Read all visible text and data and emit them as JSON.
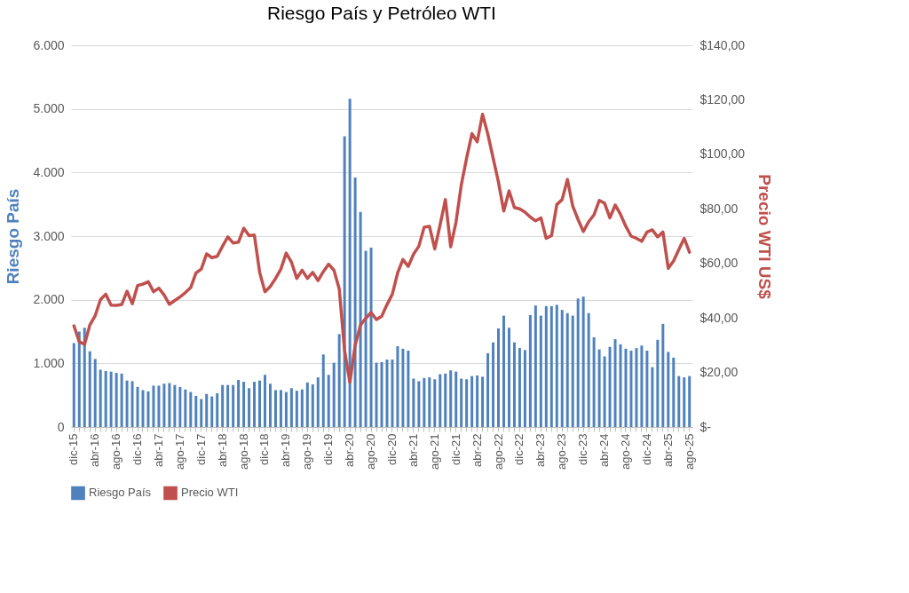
{
  "chart_data": {
    "type": "bar",
    "title": "Riesgo País y Petróleo WTI",
    "ylabel": "Riesgo País",
    "y2label": "Precio WTI US$",
    "categories": [
      "dic-15",
      null,
      null,
      null,
      "abr-16",
      null,
      null,
      null,
      "ago-16",
      null,
      null,
      null,
      "dic-16",
      null,
      null,
      null,
      "abr-17",
      null,
      null,
      null,
      "ago-17",
      null,
      null,
      null,
      "dic-17",
      null,
      null,
      null,
      "abr-18",
      null,
      null,
      null,
      "ago-18",
      null,
      null,
      null,
      "dic-18",
      null,
      null,
      null,
      "abr-19",
      null,
      null,
      null,
      "ago-19",
      null,
      null,
      null,
      "dic-19",
      null,
      null,
      null,
      "abr-20",
      null,
      null,
      null,
      "ago-20",
      null,
      null,
      null,
      "dic-20",
      null,
      null,
      null,
      "abr-21",
      null,
      null,
      null,
      "ago-21",
      null,
      null,
      null,
      "dic-21",
      null,
      null,
      null,
      "abr-22",
      null,
      null,
      null,
      "ago-22",
      null,
      null,
      null,
      "dic-22",
      null,
      null,
      null,
      "abr-23",
      null,
      null,
      null,
      "ago-23",
      null,
      null,
      null,
      "dic-23",
      null,
      null,
      null,
      "abr-24",
      null,
      null,
      null,
      "ago-24",
      null,
      null,
      null,
      "dic-24",
      null,
      null,
      null,
      "abr-25",
      null,
      null,
      null,
      "ago-25"
    ],
    "series": [
      {
        "name": "Riesgo País",
        "color": "#4f81bd",
        "values": [
          1320,
          1500,
          1560,
          1190,
          1070,
          900,
          880,
          870,
          850,
          840,
          730,
          720,
          630,
          580,
          560,
          650,
          650,
          680,
          690,
          660,
          630,
          590,
          550,
          490,
          440,
          520,
          480,
          530,
          660,
          660,
          660,
          740,
          710,
          610,
          710,
          730,
          820,
          680,
          580,
          580,
          550,
          610,
          570,
          590,
          700,
          670,
          780,
          1140,
          820,
          1010,
          1460,
          4570,
          5160,
          3920,
          3380,
          2770,
          2820,
          1010,
          1020,
          1060,
          1060,
          1270,
          1230,
          1200,
          760,
          720,
          770,
          780,
          750,
          830,
          840,
          890,
          870,
          760,
          750,
          800,
          810,
          790,
          1160,
          1330,
          1550,
          1750,
          1560,
          1330,
          1240,
          1210,
          1760,
          1910,
          1750,
          1900,
          1900,
          1920,
          1840,
          1790,
          1750,
          2020,
          2050,
          1790,
          1410,
          1220,
          1110,
          1260,
          1380,
          1300,
          1230,
          1200,
          1240,
          1280,
          1200,
          940,
          1370,
          1620,
          1180,
          1090,
          800,
          780,
          800
        ]
      },
      {
        "name": "Precio WTI",
        "type": "line",
        "axis": "y2",
        "color": "#c0504d",
        "values": [
          37.1,
          31.3,
          30.3,
          37.4,
          40.8,
          46.7,
          48.7,
          44.7,
          44.6,
          44.9,
          49.8,
          45.2,
          51.9,
          52.4,
          53.3,
          49.6,
          50.9,
          48.4,
          45.0,
          46.4,
          47.7,
          49.3,
          51.1,
          56.5,
          57.9,
          63.5,
          62.1,
          62.6,
          66.3,
          69.7,
          67.5,
          67.8,
          72.9,
          70.2,
          70.4,
          56.7,
          49.6,
          51.5,
          54.5,
          57.9,
          63.8,
          60.4,
          54.5,
          57.5,
          54.5,
          56.7,
          53.7,
          57.0,
          59.7,
          57.5,
          50.6,
          28.1,
          16.4,
          30.0,
          37.4,
          39.9,
          42.0,
          39.4,
          40.6,
          44.9,
          48.7,
          56.5,
          61.4,
          58.9,
          63.4,
          66.3,
          73.3,
          73.6,
          65.3,
          74.1,
          83.4,
          66.1,
          75.1,
          88.8,
          98.6,
          107.6,
          104.6,
          114.7,
          107.4,
          98.6,
          89.8,
          79.2,
          86.6,
          80.5,
          80.0,
          78.8,
          77.0,
          75.6,
          76.7,
          69.2,
          70.2,
          81.6,
          83.4,
          90.8,
          81.0,
          76.1,
          71.7,
          75.3,
          77.8,
          83.1,
          82.1,
          76.7,
          81.4,
          78.0,
          73.6,
          70.0,
          69.2,
          68.1,
          71.5,
          72.3,
          69.7,
          71.5,
          58.2,
          60.9,
          65.1,
          69.2,
          64.1
        ]
      }
    ],
    "ylim": [
      0,
      6000
    ],
    "yticks": [
      0,
      {
        "value": 1000,
        "label": "1.000"
      },
      {
        "value": 2000,
        "label": "2.000"
      },
      {
        "value": 3000,
        "label": "3.000"
      },
      {
        "value": 4000,
        "label": "4.000"
      },
      {
        "value": 5000,
        "label": "5.000"
      },
      {
        "value": 6000,
        "label": "6.000"
      }
    ],
    "y2lim": [
      0,
      140
    ],
    "y2ticks": [
      {
        "value": 0,
        "label": "$-"
      },
      {
        "value": 20,
        "label": "$20,00"
      },
      {
        "value": 40,
        "label": "$40,00"
      },
      {
        "value": 60,
        "label": "$60,00"
      },
      {
        "value": 80,
        "label": "$80,00"
      },
      {
        "value": 100,
        "label": "$100,00"
      },
      {
        "value": 120,
        "label": "$120,00"
      },
      {
        "value": 140,
        "label": "$140,00"
      }
    ],
    "grid": "y",
    "legend": "bottom"
  }
}
